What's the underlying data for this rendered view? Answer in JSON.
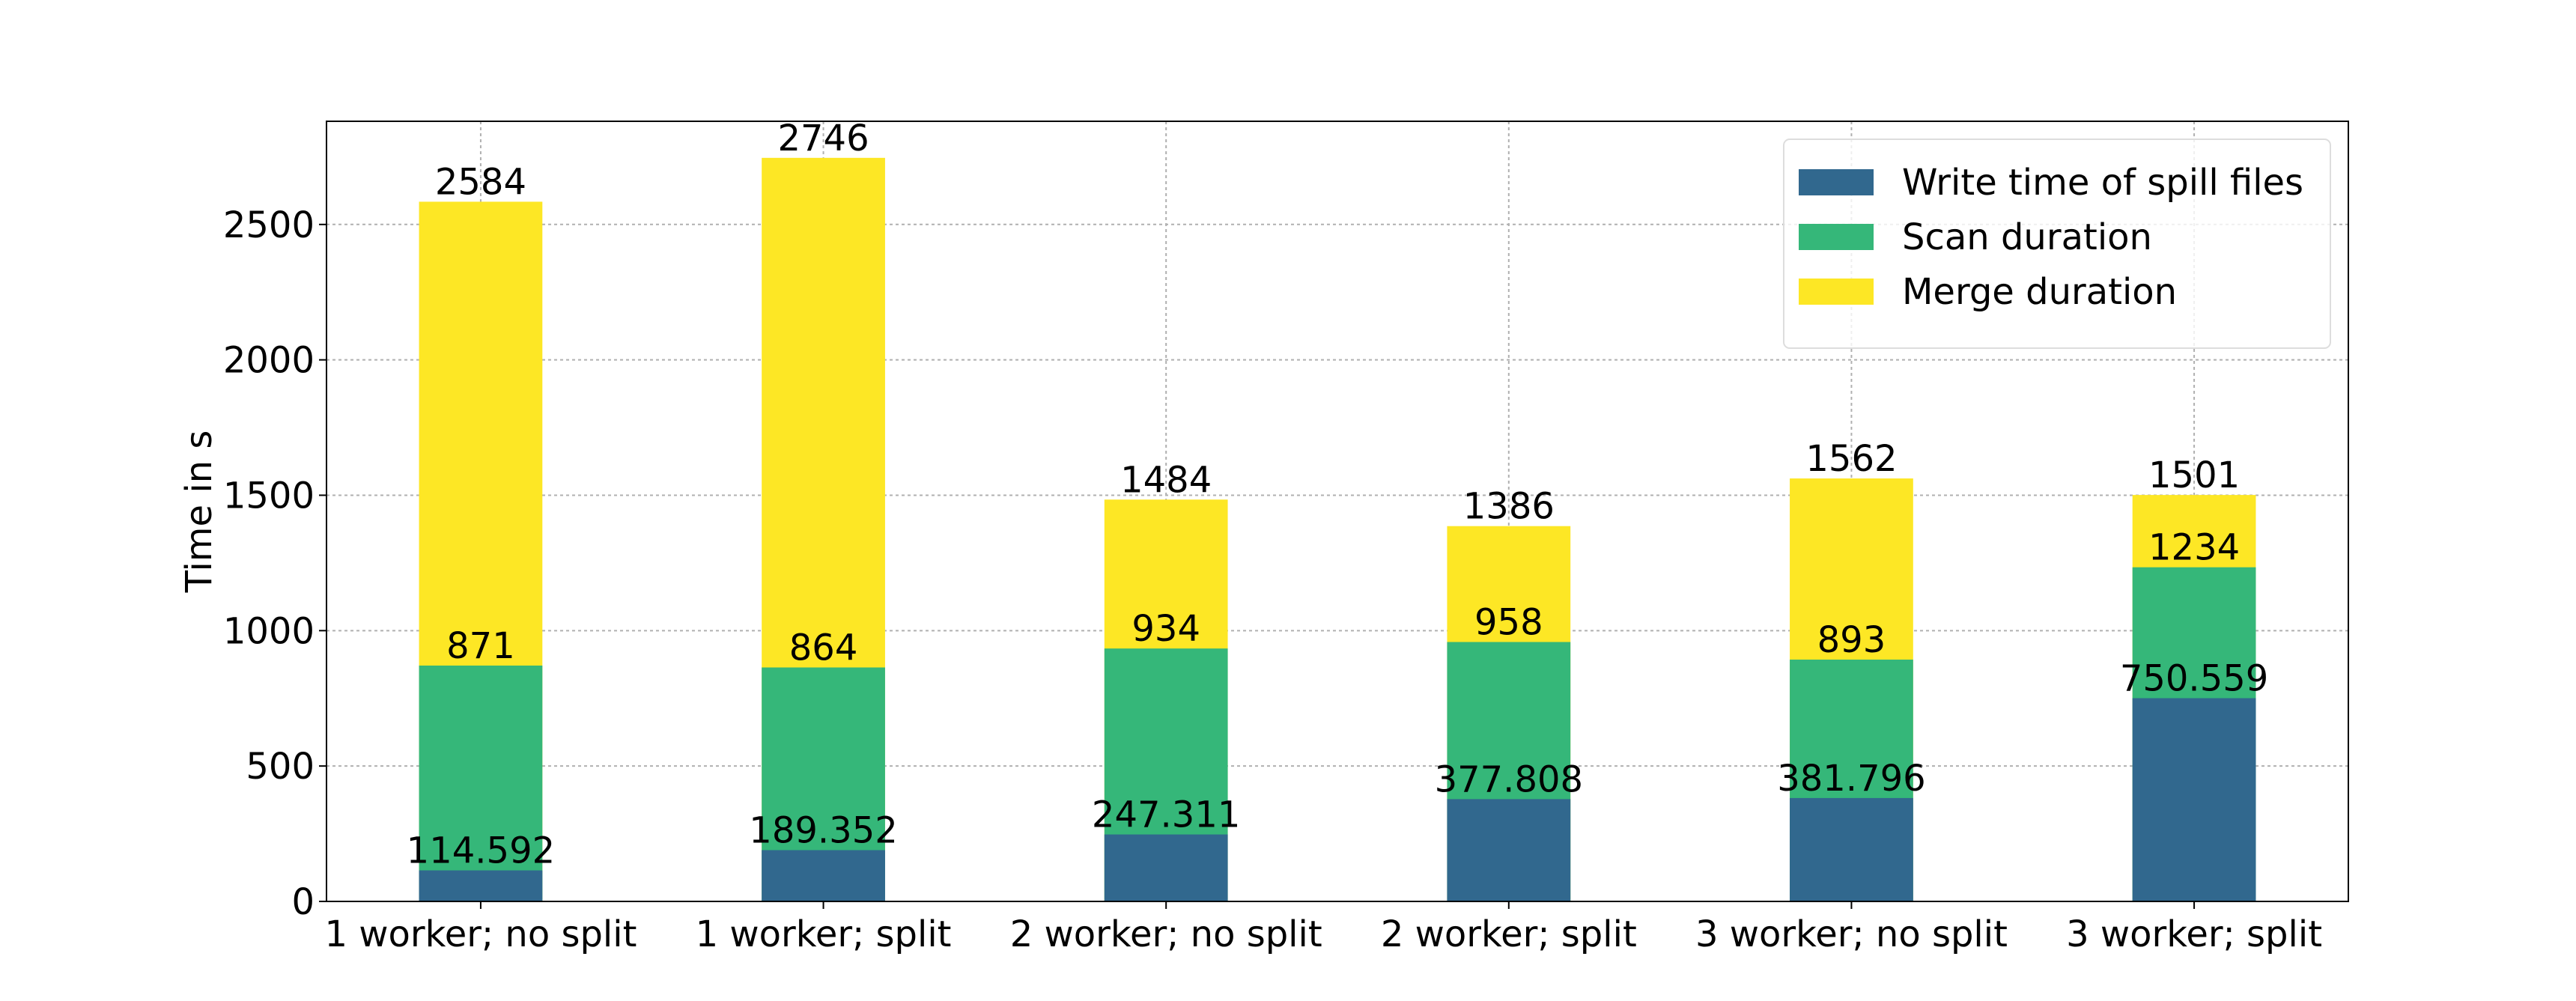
{
  "chart_data": {
    "type": "bar",
    "y_label": "Time in s",
    "categories": [
      "1 worker; no split",
      "1 worker; split",
      "2 worker; no split",
      "2 worker; split",
      "3 worker; no split",
      "3 worker; split"
    ],
    "series": [
      {
        "name": "Write time of spill files",
        "color": "#31688e",
        "values": [
          114.592,
          189.352,
          247.311,
          377.808,
          381.796,
          750.559
        ]
      },
      {
        "name": "Scan duration",
        "color": "#35b779",
        "values": [
          871,
          864,
          934,
          958,
          893,
          1234
        ]
      },
      {
        "name": "Merge duration",
        "color": "#fde725",
        "values": [
          2584,
          2746,
          1484,
          1386,
          1562,
          1501
        ]
      }
    ],
    "ylim": [
      0,
      2881
    ],
    "yticks": [
      0,
      500,
      1000,
      1500,
      2000,
      2500
    ],
    "grid": true,
    "legend": "upper right"
  }
}
